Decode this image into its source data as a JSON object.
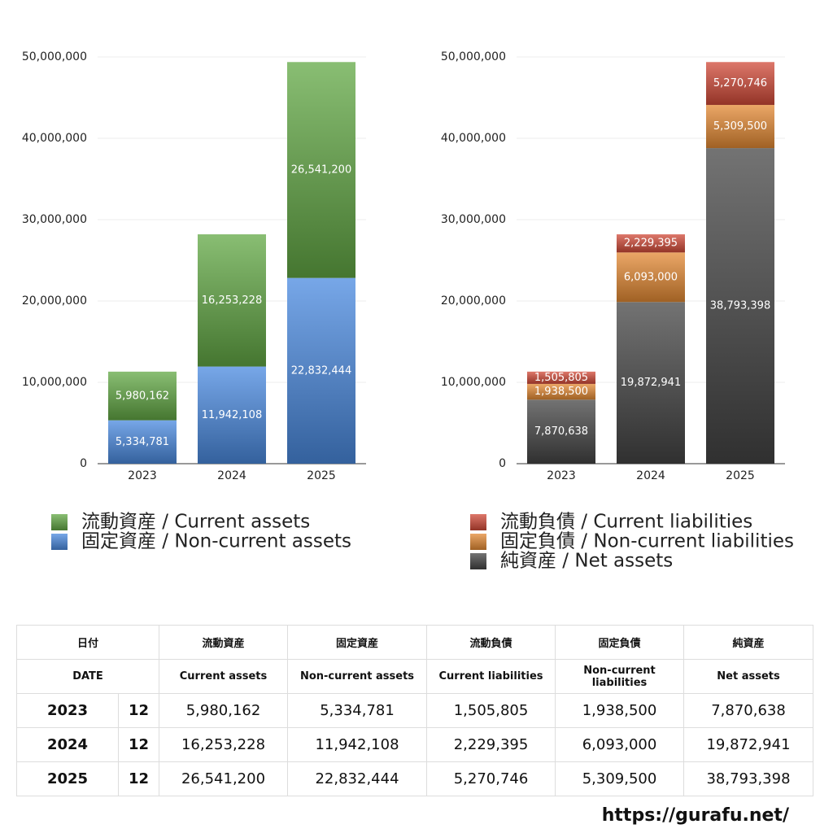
{
  "chart_data": [
    {
      "type": "stacked_bar",
      "categories": [
        "2023",
        "2024",
        "2025"
      ],
      "series": [
        {
          "name": "固定資産 / Non-current assets",
          "color": "#4a8ae0",
          "values": [
            5334781,
            11942108,
            22832444
          ],
          "value_labels": [
            "5,334,781",
            "11,942,108",
            "22,832,444"
          ]
        },
        {
          "name": "流動資産 / Current assets",
          "color": "#62a844",
          "values": [
            5980162,
            16253228,
            26541200
          ],
          "value_labels": [
            "5,980,162",
            "16,253,228",
            "26,541,200"
          ]
        }
      ],
      "ylim": [
        0,
        50000000
      ],
      "yticks": [
        0,
        {
          "value": 10000000,
          "label": "10,000,000"
        },
        {
          "value": 20000000,
          "label": "20,000,000"
        },
        {
          "value": 30000000,
          "label": "30,000,000"
        },
        {
          "value": 40000000,
          "label": "40,000,000"
        },
        {
          "value": 50000000,
          "label": "50,000,000"
        }
      ],
      "grid": true
    },
    {
      "type": "stacked_bar",
      "categories": [
        "2023",
        "2024",
        "2025"
      ],
      "series": [
        {
          "name": "純資産 / Net assets",
          "color": "#444444",
          "values": [
            7870638,
            19872941,
            38793398
          ],
          "value_labels": [
            "7,870,638",
            "19,872,941",
            "38,793,398"
          ]
        },
        {
          "name": "固定負債 / Non-current liabilities",
          "color": "#e48a34",
          "values": [
            1938500,
            6093000,
            5309500
          ],
          "value_labels": [
            "1,938,500",
            "6,093,000",
            "5,309,500"
          ]
        },
        {
          "name": "流動負債 / Current liabilities",
          "color": "#d24a38",
          "values": [
            1505805,
            2229395,
            5270746
          ],
          "value_labels": [
            "1,505,805",
            "2,229,395",
            "5,270,746"
          ]
        }
      ],
      "ylim": [
        0,
        50000000
      ],
      "yticks": [
        0,
        {
          "value": 10000000,
          "label": "10,000,000"
        },
        {
          "value": 20000000,
          "label": "20,000,000"
        },
        {
          "value": 30000000,
          "label": "30,000,000"
        },
        {
          "value": 40000000,
          "label": "40,000,000"
        },
        {
          "value": 50000000,
          "label": "50,000,000"
        }
      ],
      "grid": true
    }
  ],
  "table": {
    "header": [
      "日付",
      "流動資産",
      "固定資産",
      "流動負債",
      "固定負債",
      "純資産"
    ],
    "subheader": [
      "DATE",
      "Current assets",
      "Non-current assets",
      "Current liabilities",
      "Non-current liabilities",
      "Net assets"
    ],
    "rows": [
      [
        "2023",
        "12",
        "5,980,162",
        "5,334,781",
        "1,505,805",
        "1,938,500",
        "7,870,638"
      ],
      [
        "2024",
        "12",
        "16,253,228",
        "11,942,108",
        "2,229,395",
        "6,093,000",
        "19,872,941"
      ],
      [
        "2025",
        "12",
        "26,541,200",
        "22,832,444",
        "5,270,746",
        "5,309,500",
        "38,793,398"
      ]
    ]
  },
  "footer": "https://gurafu.net/"
}
